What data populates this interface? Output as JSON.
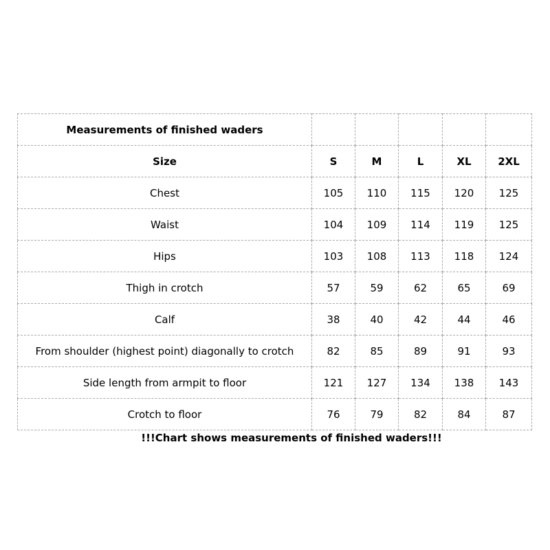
{
  "title": "Measurements of finished waders",
  "size_label": "Size",
  "sizes": [
    "S",
    "M",
    "L",
    "XL",
    "2XL"
  ],
  "rows": [
    {
      "label": "Chest",
      "values": [
        "105",
        "110",
        "115",
        "120",
        "125"
      ]
    },
    {
      "label": "Waist",
      "values": [
        "104",
        "109",
        "114",
        "119",
        "125"
      ]
    },
    {
      "label": "Hips",
      "values": [
        "103",
        "108",
        "113",
        "118",
        "124"
      ]
    },
    {
      "label": "Thigh in crotch",
      "values": [
        "57",
        "59",
        "62",
        "65",
        "69"
      ]
    },
    {
      "label": "Calf",
      "values": [
        "38",
        "40",
        "42",
        "44",
        "46"
      ]
    },
    {
      "label": "From shoulder (highest point) diagonally to crotch",
      "values": [
        "82",
        "85",
        "89",
        "91",
        "93"
      ]
    },
    {
      "label": "Side length from armpit to floor",
      "values": [
        "121",
        "127",
        "134",
        "138",
        "143"
      ]
    },
    {
      "label": "Crotch to floor",
      "values": [
        "76",
        "79",
        "82",
        "84",
        "87"
      ]
    }
  ],
  "note": "!!!Chart shows measurements of finished waders!!!"
}
